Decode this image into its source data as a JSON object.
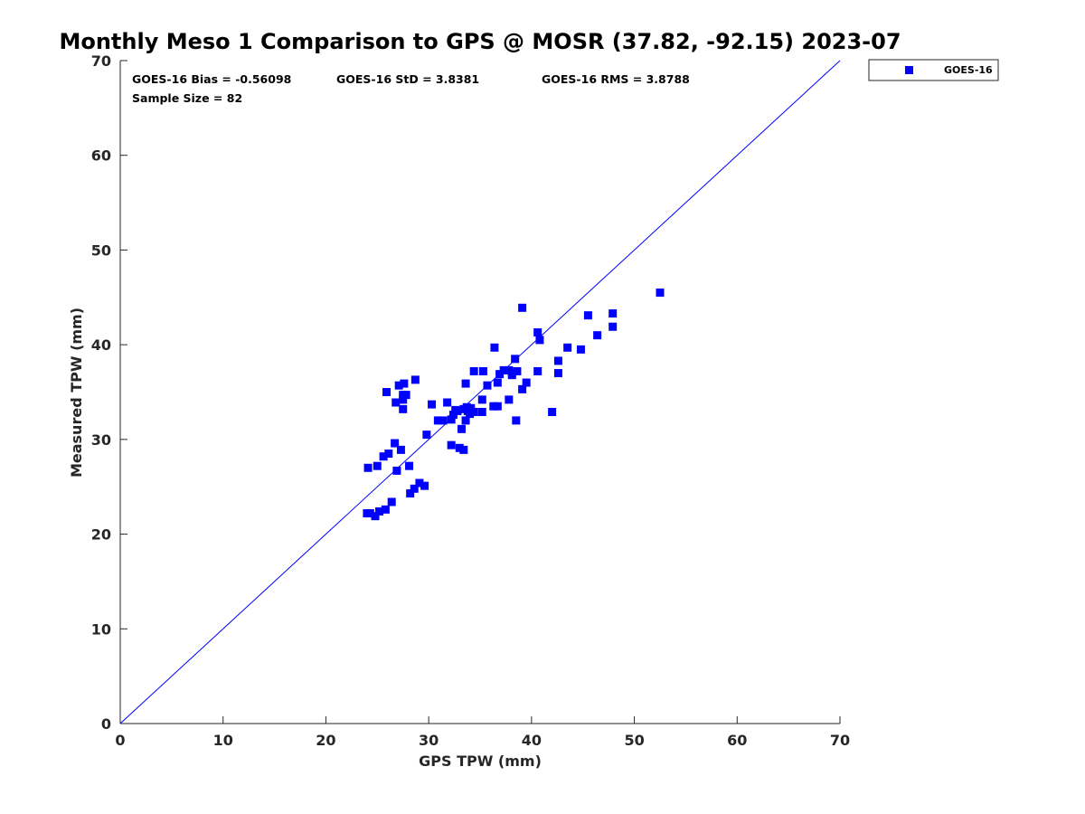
{
  "chart_data": {
    "type": "scatter",
    "title": "Monthly Meso 1 Comparison to GPS @ MOSR (37.82, -92.15) 2023-07",
    "xlabel": "GPS TPW (mm)",
    "ylabel": "Measured TPW (mm)",
    "xlim": [
      0,
      70
    ],
    "ylim": [
      0,
      70
    ],
    "xticks": [
      "0",
      "10",
      "20",
      "30",
      "40",
      "50",
      "60",
      "70"
    ],
    "yticks": [
      "0",
      "10",
      "20",
      "30",
      "40",
      "50",
      "60",
      "70"
    ],
    "grid": false,
    "legend_position": "top-right-outside",
    "reference_line": {
      "name": "1:1",
      "x": [
        0,
        70
      ],
      "y": [
        0,
        70
      ],
      "color": "#0000ff"
    },
    "stats": {
      "bias": "GOES-16 Bias = -0.56098",
      "std": "GOES-16 StD = 3.8381",
      "rms": "GOES-16 RMS = 3.8788",
      "sample_size": "Sample Size = 82"
    },
    "series": [
      {
        "name": "GOES-16",
        "color": "#0000ff",
        "marker": "square",
        "points": [
          [
            24.0,
            22.2
          ],
          [
            24.3,
            22.2
          ],
          [
            24.8,
            21.9
          ],
          [
            25.2,
            22.4
          ],
          [
            25.8,
            22.6
          ],
          [
            26.4,
            23.4
          ],
          [
            28.2,
            24.3
          ],
          [
            28.6,
            24.8
          ],
          [
            29.1,
            25.4
          ],
          [
            29.6,
            25.1
          ],
          [
            24.1,
            27.0
          ],
          [
            25.0,
            27.2
          ],
          [
            25.6,
            28.2
          ],
          [
            26.1,
            28.5
          ],
          [
            26.7,
            29.6
          ],
          [
            27.3,
            28.9
          ],
          [
            26.9,
            26.7
          ],
          [
            28.1,
            27.2
          ],
          [
            29.8,
            30.5
          ],
          [
            25.9,
            35.0
          ],
          [
            26.8,
            33.9
          ],
          [
            27.1,
            35.7
          ],
          [
            27.5,
            33.2
          ],
          [
            27.5,
            34.2
          ],
          [
            27.6,
            35.9
          ],
          [
            27.8,
            34.7
          ],
          [
            28.7,
            36.3
          ],
          [
            27.5,
            34.7
          ],
          [
            30.3,
            33.7
          ],
          [
            30.9,
            32.0
          ],
          [
            31.4,
            32.0
          ],
          [
            31.8,
            33.9
          ],
          [
            32.2,
            32.1
          ],
          [
            32.4,
            32.6
          ],
          [
            32.8,
            33.0
          ],
          [
            33.2,
            31.1
          ],
          [
            33.6,
            32.0
          ],
          [
            33.8,
            33.0
          ],
          [
            34.1,
            33.3
          ],
          [
            34.4,
            32.9
          ],
          [
            33.6,
            35.9
          ],
          [
            34.4,
            37.2
          ],
          [
            35.3,
            37.2
          ],
          [
            35.7,
            35.7
          ],
          [
            36.3,
            33.5
          ],
          [
            36.7,
            33.5
          ],
          [
            35.2,
            32.9
          ],
          [
            35.2,
            34.2
          ],
          [
            32.2,
            29.4
          ],
          [
            33.0,
            29.1
          ],
          [
            33.4,
            28.9
          ],
          [
            36.4,
            39.7
          ],
          [
            36.7,
            36.0
          ],
          [
            36.9,
            36.9
          ],
          [
            37.3,
            37.3
          ],
          [
            37.8,
            37.3
          ],
          [
            38.1,
            37.0
          ],
          [
            38.1,
            36.8
          ],
          [
            38.4,
            38.5
          ],
          [
            38.6,
            37.2
          ],
          [
            37.8,
            34.2
          ],
          [
            38.5,
            32.0
          ],
          [
            39.1,
            35.3
          ],
          [
            39.5,
            36.0
          ],
          [
            39.1,
            43.9
          ],
          [
            40.6,
            41.3
          ],
          [
            40.8,
            40.5
          ],
          [
            40.6,
            37.2
          ],
          [
            42.0,
            32.9
          ],
          [
            42.6,
            37.0
          ],
          [
            42.6,
            38.3
          ],
          [
            43.5,
            39.7
          ],
          [
            44.8,
            39.5
          ],
          [
            45.5,
            43.1
          ],
          [
            46.4,
            41.0
          ],
          [
            47.9,
            43.3
          ],
          [
            47.9,
            41.9
          ],
          [
            52.5,
            45.5
          ],
          [
            34.0,
            32.7
          ],
          [
            32.6,
            33.1
          ],
          [
            33.4,
            33.2
          ],
          [
            33.7,
            33.4
          ]
        ]
      }
    ]
  }
}
